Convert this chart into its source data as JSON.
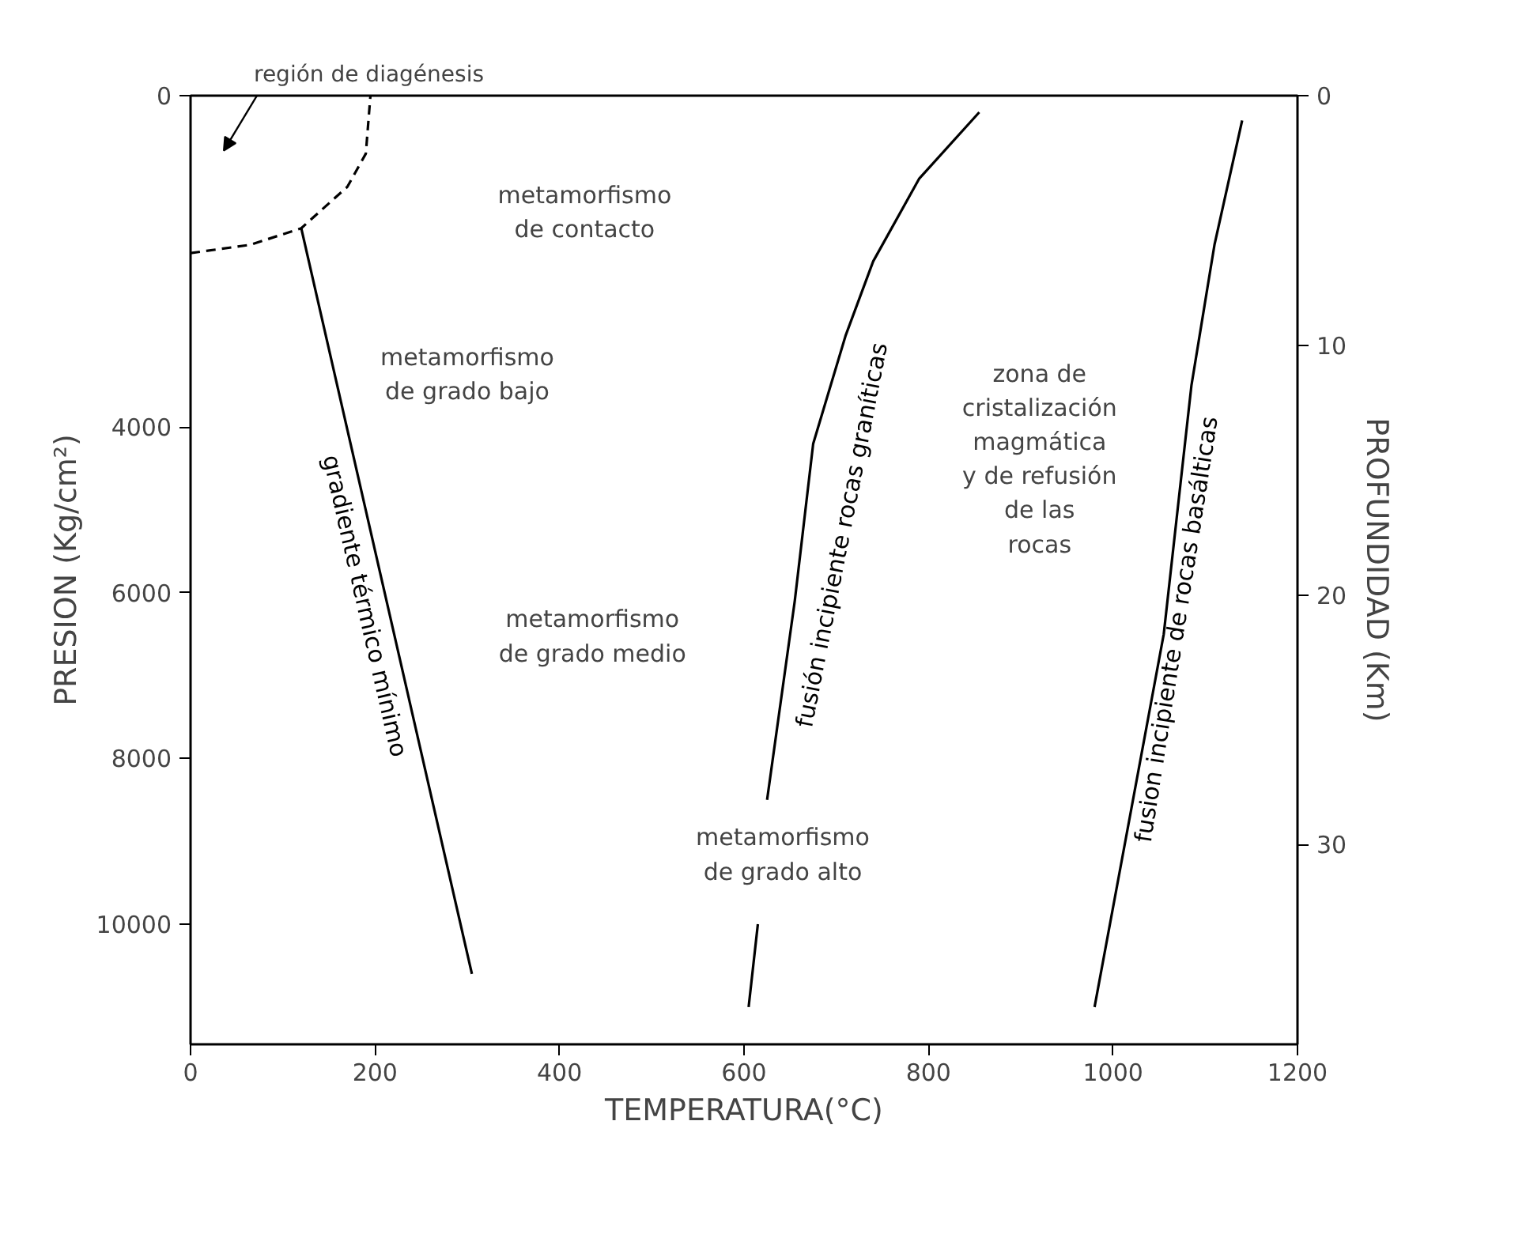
{
  "chart_data": {
    "type": "line",
    "xlabel": "TEMPERATURA(°C)",
    "ylabel": "PRESION (Kg/cm²)",
    "y2label": "PROFUNDIDAD (Km)",
    "xlim": [
      0,
      1200
    ],
    "ylim": [
      11450,
      0
    ],
    "y2lim": [
      38,
      0
    ],
    "xticks": [
      0,
      200,
      400,
      600,
      800,
      1000,
      1200
    ],
    "yticks": [
      0,
      4000,
      6000,
      8000,
      10000
    ],
    "y2ticks": [
      0,
      10,
      20,
      30
    ],
    "grid": false,
    "series": [
      {
        "x": [
          0,
          65,
          120,
          170,
          190,
          195
        ],
        "values": [
          1900,
          1800,
          1600,
          1100,
          700,
          0
        ],
        "color": "#000000",
        "line_style": "dashed"
      },
      {
        "name": "gradiente térmico mínimo",
        "x": [
          120,
          305
        ],
        "values": [
          1600,
          10600
        ],
        "color": "#000000",
        "line_style": "solid"
      },
      {
        "name": "fusión incipiente rocas graníticas",
        "x": [
          605,
          615,
          620,
          625,
          655,
          675,
          710,
          740,
          790,
          855
        ],
        "values": [
          11000,
          10000,
          null,
          8500,
          6100,
          4200,
          2900,
          2000,
          1000,
          200
        ],
        "color": "#000000",
        "line_style": "solid"
      },
      {
        "name": "fusion incipiente de rocas basálticas",
        "x": [
          980,
          1015,
          1055,
          1085,
          1110,
          1140
        ],
        "values": [
          11000,
          8900,
          6500,
          3500,
          1800,
          300
        ],
        "color": "#000000",
        "line_style": "solid"
      }
    ],
    "annotations": [
      "región de diagénesis",
      "metamorfismo\nde contacto",
      "metamorfismo\nde grado bajo",
      "metamorfismo\nde grado medio",
      "metamorfismo\nde grado alto",
      "zona de\ncristalización\nmagmática\ny de refusión\nde las\nrocas"
    ]
  }
}
